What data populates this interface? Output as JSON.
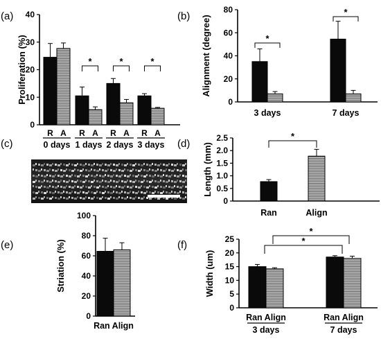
{
  "panel_labels": {
    "a": "(a)",
    "b": "(b)",
    "c": "(c)",
    "d": "(d)",
    "e": "(e)",
    "f": "(f)"
  },
  "colors": {
    "black": "#0a0a0a",
    "striped": "#bdbdbd",
    "stripe_line": "#4a4a4a",
    "axis": "#000000"
  },
  "image_panel": {
    "description_name": "micrograph",
    "has_scale_bar": true
  },
  "chart_data": [
    {
      "id": "a",
      "type": "bar",
      "ylabel": "Proliferation (%)",
      "xlabel": "",
      "ylim": [
        0,
        40
      ],
      "yticks": [
        0,
        10,
        20,
        30,
        40
      ],
      "categories": [
        "0 days",
        "1 days",
        "2 days",
        "3 days"
      ],
      "bar_labels": [
        "R",
        "A"
      ],
      "series": [
        {
          "name": "R",
          "values": [
            24.5,
            10.5,
            15,
            10.5
          ],
          "errors": [
            5,
            3.2,
            1.8,
            0.8
          ]
        },
        {
          "name": "A",
          "values": [
            27.7,
            5.5,
            8,
            6
          ],
          "errors": [
            2,
            1,
            1.2,
            0.3
          ]
        }
      ],
      "significance": [
        {
          "label": "*",
          "from": 1,
          "to": 1
        },
        {
          "label": "*",
          "from": 2,
          "to": 2
        },
        {
          "label": "*",
          "from": 3,
          "to": 3
        }
      ]
    },
    {
      "id": "b",
      "type": "bar",
      "ylabel": "Alignment (degree)",
      "xlabel": "",
      "ylim": [
        0,
        80
      ],
      "yticks": [
        0,
        20,
        40,
        60,
        80
      ],
      "categories": [
        "3 days",
        "7 days"
      ],
      "series": [
        {
          "name": "",
          "values": [
            35,
            54.5
          ],
          "errors": [
            11,
            15.5
          ]
        },
        {
          "name": "",
          "values": [
            7,
            7
          ],
          "errors": [
            2,
            3
          ]
        }
      ],
      "significance": [
        {
          "label": "*",
          "from": 0,
          "to": 0
        },
        {
          "label": "*",
          "from": 1,
          "to": 1
        }
      ]
    },
    {
      "id": "d",
      "type": "bar",
      "ylabel": "Length (mm)",
      "xlabel": "",
      "ylim": [
        0,
        2.5
      ],
      "yticks": [
        "0",
        "0.5",
        "1.0",
        "1.5",
        "2.0",
        "2.5"
      ],
      "categories": [
        "Ran",
        "Align"
      ],
      "values": [
        0.77,
        1.78
      ],
      "errors": [
        0.08,
        0.27
      ],
      "styles": [
        "black",
        "striped"
      ],
      "significance": [
        {
          "label": "*",
          "from": 0,
          "to": 1
        }
      ]
    },
    {
      "id": "e",
      "type": "bar",
      "ylabel": "Striation (%)",
      "xlabel": "",
      "ylim": [
        0,
        100
      ],
      "yticks": [
        0,
        20,
        40,
        60,
        80,
        100
      ],
      "category_label": "Ran Align",
      "values": [
        64.5,
        66
      ],
      "errors": [
        13,
        7
      ],
      "styles": [
        "black",
        "striped"
      ]
    },
    {
      "id": "f",
      "type": "bar",
      "ylabel": "Width (um)",
      "xlabel": "",
      "ylim": [
        0,
        25
      ],
      "yticks": [
        0,
        5,
        10,
        15,
        20,
        25
      ],
      "categories": [
        "3 days",
        "7 days"
      ],
      "bar_labels": [
        "Ran Align",
        "Ran Align"
      ],
      "series": [
        {
          "name": "Ran",
          "values": [
            15,
            18.5
          ],
          "errors": [
            0.8,
            0.5
          ]
        },
        {
          "name": "Align",
          "values": [
            14.2,
            18
          ],
          "errors": [
            0.4,
            0.8
          ]
        }
      ],
      "significance": [
        {
          "label": "*",
          "from": 0,
          "to": 1
        },
        {
          "label": "*",
          "from": 0,
          "to": 1
        }
      ]
    }
  ]
}
